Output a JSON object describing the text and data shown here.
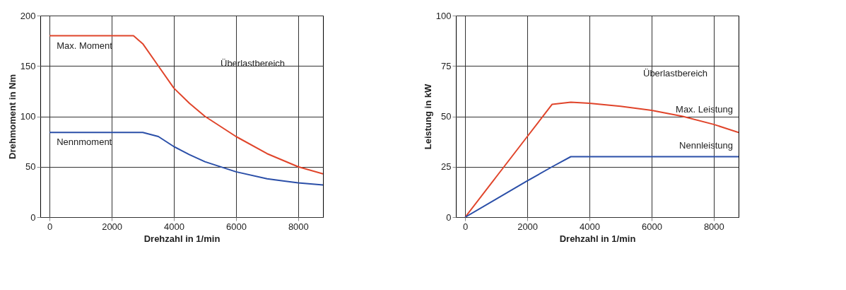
{
  "chart_data": [
    {
      "type": "line",
      "xlabel": "Drehzahl in 1/min",
      "ylabel": "Drehmoment in Nm",
      "x": [
        0,
        1000,
        2000,
        2700,
        3000,
        3500,
        4000,
        4500,
        5000,
        6000,
        7000,
        8000,
        8800
      ],
      "xlim": [
        -300,
        8800
      ],
      "ylim": [
        0,
        200
      ],
      "xticks": [
        0,
        2000,
        4000,
        6000,
        8000
      ],
      "yticks": [
        0,
        50,
        100,
        150,
        200
      ],
      "grid": true,
      "series": [
        {
          "name": "Max. Moment",
          "color": "#e0442a",
          "values": [
            180,
            180,
            180,
            180,
            172,
            150,
            128,
            113,
            100,
            80,
            63,
            50,
            43
          ]
        },
        {
          "name": "Nennmoment",
          "color": "#2b4fa8",
          "values": [
            84,
            84,
            84,
            84,
            84,
            80,
            70,
            62,
            55,
            45,
            38,
            34,
            32
          ]
        }
      ],
      "annotations": [
        "Überlastbereich"
      ]
    },
    {
      "type": "line",
      "xlabel": "Drehzahl in 1/min",
      "ylabel": "Leistung in kW",
      "x": [
        0,
        1000,
        2000,
        2800,
        3400,
        4000,
        5000,
        6000,
        7000,
        8000,
        8800
      ],
      "xlim": [
        -300,
        8800
      ],
      "ylim": [
        0,
        100
      ],
      "xticks": [
        0,
        2000,
        4000,
        6000,
        8000
      ],
      "yticks": [
        0,
        25,
        50,
        75,
        100
      ],
      "grid": true,
      "series": [
        {
          "name": "Max. Leistung",
          "color": "#e0442a",
          "values": [
            0,
            20,
            40,
            56,
            57,
            56.5,
            55,
            53,
            50,
            46,
            42
          ]
        },
        {
          "name": "Nennleistung",
          "color": "#2b4fa8",
          "values": [
            0,
            9,
            18,
            25,
            30,
            30,
            30,
            30,
            30,
            30,
            30
          ]
        }
      ],
      "annotations": [
        "Überlastbereich"
      ]
    }
  ]
}
